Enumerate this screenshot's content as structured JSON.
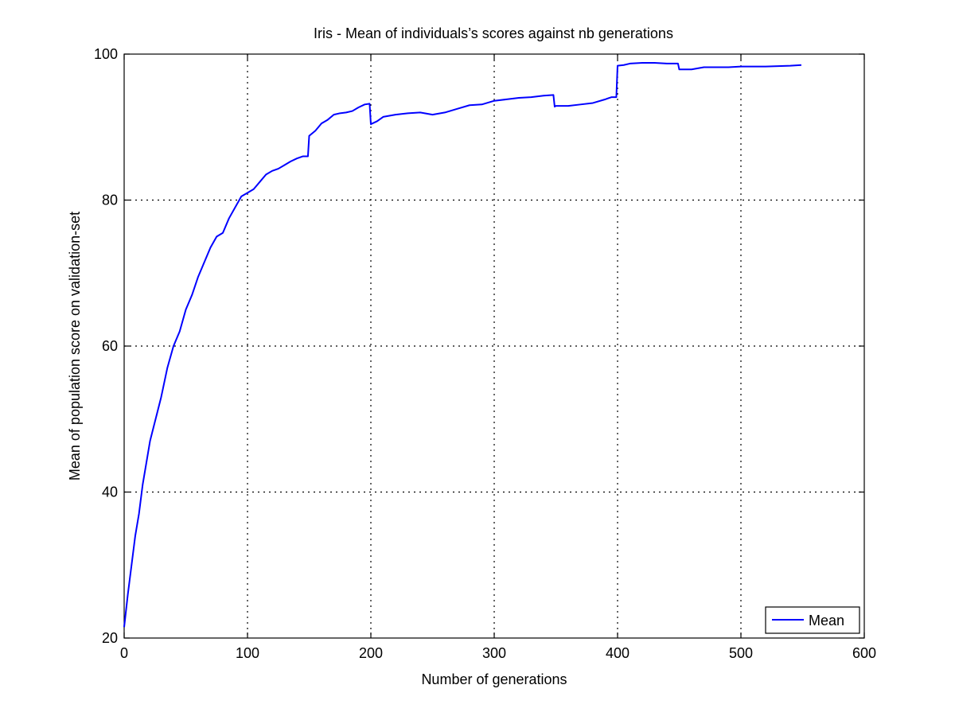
{
  "chart_data": {
    "type": "line",
    "title": "Iris - Mean of individuals’s scores against nb generations",
    "xlabel": "Number of generations",
    "ylabel": "Mean of population score on validation-set",
    "xlim": [
      0,
      600
    ],
    "ylim": [
      20,
      100
    ],
    "xticks": [
      0,
      100,
      200,
      300,
      400,
      500,
      600
    ],
    "yticks": [
      20,
      40,
      60,
      80,
      100
    ],
    "grid": true,
    "legend_position": "bottom-right",
    "series": [
      {
        "name": "Mean",
        "color": "#0000ff",
        "x": [
          0,
          3,
          6,
          9,
          12,
          15,
          18,
          21,
          24,
          27,
          30,
          35,
          40,
          45,
          50,
          55,
          60,
          65,
          70,
          75,
          80,
          85,
          90,
          95,
          100,
          105,
          110,
          115,
          120,
          125,
          130,
          135,
          140,
          145,
          149,
          150,
          155,
          160,
          165,
          170,
          175,
          180,
          185,
          190,
          195,
          199,
          200,
          205,
          210,
          220,
          230,
          240,
          250,
          260,
          270,
          280,
          290,
          300,
          310,
          320,
          330,
          340,
          348,
          349,
          350,
          355,
          360,
          370,
          380,
          390,
          395,
          399,
          400,
          405,
          410,
          420,
          430,
          440,
          449,
          450,
          460,
          470,
          480,
          490,
          500,
          520,
          540,
          549
        ],
        "y": [
          21.5,
          26,
          30,
          34,
          37,
          41,
          44,
          47,
          49,
          51,
          53,
          57,
          60,
          62,
          65,
          67,
          69.5,
          71.5,
          73.5,
          75,
          75.5,
          77.5,
          79,
          80.5,
          81,
          81.5,
          82.5,
          83.5,
          84,
          84.3,
          84.8,
          85.3,
          85.7,
          86,
          86,
          88.8,
          89.5,
          90.5,
          91,
          91.7,
          91.9,
          92,
          92.2,
          92.7,
          93.1,
          93.2,
          90.4,
          90.8,
          91.4,
          91.7,
          91.9,
          92,
          91.7,
          92,
          92.5,
          93,
          93.1,
          93.6,
          93.8,
          94,
          94.1,
          94.3,
          94.4,
          92.8,
          92.9,
          92.9,
          92.9,
          93.1,
          93.3,
          93.8,
          94.1,
          94.1,
          98.4,
          98.5,
          98.7,
          98.8,
          98.8,
          98.7,
          98.7,
          97.9,
          97.9,
          98.2,
          98.2,
          98.2,
          98.3,
          98.3,
          98.4,
          98.5
        ]
      }
    ]
  }
}
